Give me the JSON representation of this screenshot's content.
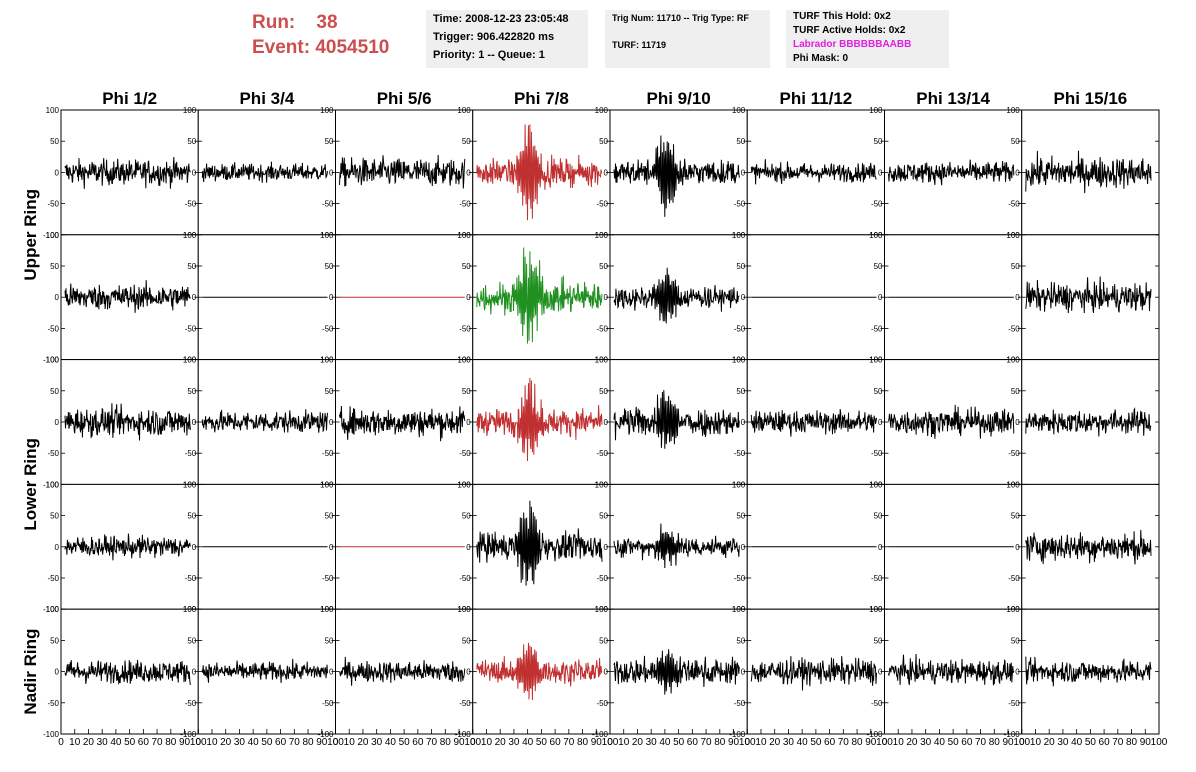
{
  "header": {
    "run_label": "Run:",
    "run_value": "38",
    "event_label": "Event:",
    "event_value": "4054510",
    "time": "Time: 2008-12-23 23:05:48",
    "trigger": "Trigger: 906.422820 ms",
    "priority": "Priority: 1 -- Queue: 1",
    "trig_num": "Trig Num: 11710 -- Trig Type: RF",
    "turf": "TURF: 11719",
    "turf_this_hold": "TURF This Hold: 0x2",
    "turf_active_holds": "TURF Active Holds: 0x2",
    "labrador": "Labrador BBBBBBAABB",
    "phi_mask": "Phi Mask: 0"
  },
  "colors": {
    "header_red": "#cc4e4e",
    "trace_black": "#000000",
    "trace_red": "#c03030",
    "trace_green": "#209020",
    "labrador_magenta": "#e020e0",
    "info_box_bg": "#efefef"
  },
  "chart_data": {
    "type": "line",
    "columns": [
      "Phi 1/2",
      "Phi 3/4",
      "Phi 5/6",
      "Phi 7/8",
      "Phi 9/10",
      "Phi 11/12",
      "Phi 13/14",
      "Phi 15/16"
    ],
    "ring_labels": [
      "Upper Ring",
      "Lower Ring",
      "Nadir Ring"
    ],
    "ylim": [
      -100,
      100
    ],
    "xlim": [
      0,
      100
    ],
    "yticks": [
      "100",
      "50",
      "0",
      "-50",
      "-100"
    ],
    "xticks": [
      "0",
      "10",
      "20",
      "30",
      "40",
      "50",
      "60",
      "70",
      "80",
      "90",
      "100"
    ],
    "grid": false,
    "panels": [
      [
        {
          "color": "black",
          "amplitude": 18,
          "pulse": 0,
          "flat": false
        },
        {
          "color": "black",
          "amplitude": 12,
          "pulse": 0,
          "flat": false
        },
        {
          "color": "black",
          "amplitude": 20,
          "pulse": 0,
          "flat": false
        },
        {
          "color": "red",
          "amplitude": 18,
          "pulse": 85,
          "flat": false
        },
        {
          "color": "black",
          "amplitude": 17,
          "pulse": 75,
          "flat": false
        },
        {
          "color": "black",
          "amplitude": 13,
          "pulse": 0,
          "flat": false
        },
        {
          "color": "black",
          "amplitude": 15,
          "pulse": 0,
          "flat": false
        },
        {
          "color": "black",
          "amplitude": 22,
          "pulse": 0,
          "flat": false
        }
      ],
      [
        {
          "color": "black",
          "amplitude": 18,
          "pulse": 0,
          "flat": false
        },
        {
          "color": "black",
          "amplitude": 0,
          "pulse": 0,
          "flat": true
        },
        {
          "color": "red",
          "amplitude": 0,
          "pulse": 0,
          "flat": true
        },
        {
          "color": "green",
          "amplitude": 22,
          "pulse": 80,
          "flat": false
        },
        {
          "color": "black",
          "amplitude": 16,
          "pulse": 55,
          "flat": false
        },
        {
          "color": "black",
          "amplitude": 0,
          "pulse": 0,
          "flat": true
        },
        {
          "color": "black",
          "amplitude": 0,
          "pulse": 0,
          "flat": true
        },
        {
          "color": "black",
          "amplitude": 20,
          "pulse": 0,
          "flat": false
        }
      ],
      [
        {
          "color": "black",
          "amplitude": 20,
          "pulse": 0,
          "flat": false
        },
        {
          "color": "black",
          "amplitude": 15,
          "pulse": 0,
          "flat": false
        },
        {
          "color": "black",
          "amplitude": 20,
          "pulse": 0,
          "flat": false
        },
        {
          "color": "red",
          "amplitude": 18,
          "pulse": 65,
          "flat": false
        },
        {
          "color": "black",
          "amplitude": 20,
          "pulse": 55,
          "flat": false
        },
        {
          "color": "black",
          "amplitude": 16,
          "pulse": 0,
          "flat": false
        },
        {
          "color": "black",
          "amplitude": 18,
          "pulse": 0,
          "flat": false
        },
        {
          "color": "black",
          "amplitude": 17,
          "pulse": 0,
          "flat": false
        }
      ],
      [
        {
          "color": "black",
          "amplitude": 15,
          "pulse": 0,
          "flat": false
        },
        {
          "color": "black",
          "amplitude": 0,
          "pulse": 0,
          "flat": true
        },
        {
          "color": "red",
          "amplitude": 0,
          "pulse": 0,
          "flat": true
        },
        {
          "color": "black",
          "amplitude": 20,
          "pulse": 80,
          "flat": false
        },
        {
          "color": "black",
          "amplitude": 14,
          "pulse": 30,
          "flat": false
        },
        {
          "color": "black",
          "amplitude": 0,
          "pulse": 0,
          "flat": true
        },
        {
          "color": "black",
          "amplitude": 0,
          "pulse": 0,
          "flat": true
        },
        {
          "color": "black",
          "amplitude": 20,
          "pulse": 0,
          "flat": false
        }
      ],
      [
        {
          "color": "black",
          "amplitude": 16,
          "pulse": 0,
          "flat": false
        },
        {
          "color": "black",
          "amplitude": 13,
          "pulse": 0,
          "flat": false
        },
        {
          "color": "black",
          "amplitude": 15,
          "pulse": 0,
          "flat": false
        },
        {
          "color": "red",
          "amplitude": 16,
          "pulse": 50,
          "flat": false
        },
        {
          "color": "black",
          "amplitude": 18,
          "pulse": 40,
          "flat": false
        },
        {
          "color": "black",
          "amplitude": 18,
          "pulse": 0,
          "flat": false
        },
        {
          "color": "black",
          "amplitude": 17,
          "pulse": 0,
          "flat": false
        },
        {
          "color": "black",
          "amplitude": 16,
          "pulse": 0,
          "flat": false
        }
      ]
    ]
  }
}
